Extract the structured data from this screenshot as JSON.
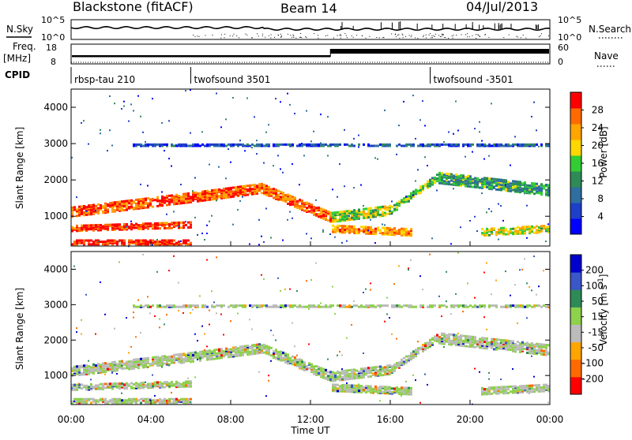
{
  "header": {
    "station": "Blackstone (fitACF)",
    "beam": "Beam 14",
    "date": "04/Jul/2013"
  },
  "top_panels": {
    "nsky_label": "N.Sky",
    "nsearch_label": "N.Search",
    "nsky_ticks": [
      "10^5",
      "10^0"
    ],
    "nsearch_ticks": [
      "10^5",
      "10^0"
    ],
    "freq_label": "Freq.",
    "freq_unit": "[MHz]",
    "freq_ticks": [
      "18",
      "8"
    ],
    "nave_label": "Nave",
    "nave_ticks": [
      "60",
      "0"
    ],
    "cpid_label": "CPID",
    "cpid_segments": [
      {
        "label": "rbsp-tau 210",
        "start_hour": 0
      },
      {
        "label": "twofsound 3501",
        "start_hour": 6
      },
      {
        "label": "twofsound -3501",
        "start_hour": 18
      }
    ]
  },
  "chart_data": [
    {
      "type": "heatmap",
      "name": "power",
      "ylabel": "Slant Range [km]",
      "xlim_hours": [
        0,
        24
      ],
      "ylim": [
        180,
        4500
      ],
      "yticks": [
        "1000",
        "2000",
        "3000",
        "4000"
      ],
      "colorbar": {
        "label": "Power [dB]",
        "ticks": [
          "28",
          "24",
          "20",
          "16",
          "12",
          "8",
          "4"
        ],
        "range": [
          0,
          30
        ],
        "colors": [
          "#0000ff",
          "#1e3fc8",
          "#2e6fa0",
          "#2e8b57",
          "#32cd32",
          "#ffd700",
          "#ffa500",
          "#ff6a00",
          "#ff0000"
        ]
      },
      "bands": [
        {
          "h0": 0.0,
          "r0": 1150,
          "h1": 6.0,
          "r1": 1550,
          "width": 250,
          "level": 0.85
        },
        {
          "h0": 0.0,
          "r0": 700,
          "h1": 6.0,
          "r1": 800,
          "width": 150,
          "level": 0.9
        },
        {
          "h0": 0.0,
          "r0": 300,
          "h1": 6.0,
          "r1": 300,
          "width": 150,
          "level": 0.95
        },
        {
          "h0": 6.0,
          "r0": 1550,
          "h1": 9.5,
          "r1": 1800,
          "width": 250,
          "level": 0.85
        },
        {
          "h0": 9.5,
          "r0": 1800,
          "h1": 13.0,
          "r1": 1000,
          "width": 250,
          "level": 0.85
        },
        {
          "h0": 13.0,
          "r0": 1000,
          "h1": 16.0,
          "r1": 1200,
          "width": 250,
          "level": 0.55
        },
        {
          "h0": 13.0,
          "r0": 700,
          "h1": 17.0,
          "r1": 600,
          "width": 200,
          "level": 0.75
        },
        {
          "h0": 16.0,
          "r0": 1200,
          "h1": 18.3,
          "r1": 2100,
          "width": 200,
          "level": 0.5
        },
        {
          "h0": 18.3,
          "r0": 2100,
          "h1": 24.0,
          "r1": 1750,
          "width": 300,
          "level": 0.4
        },
        {
          "h0": 20.5,
          "r0": 600,
          "h1": 24.0,
          "r1": 700,
          "width": 200,
          "level": 0.6
        },
        {
          "h0": 3.0,
          "r0": 3000,
          "h1": 24.0,
          "r1": 3000,
          "width": 60,
          "level": 0.2
        }
      ]
    },
    {
      "type": "heatmap",
      "name": "velocity",
      "ylabel": "Slant Range [km]",
      "xlabel": "Time UT",
      "xlim_hours": [
        0,
        24
      ],
      "ylim": [
        180,
        4500
      ],
      "yticks": [
        "1000",
        "2000",
        "3000",
        "4000"
      ],
      "xticks": [
        "00:00",
        "04:00",
        "08:00",
        "12:00",
        "16:00",
        "20:00",
        "00:00"
      ],
      "colorbar": {
        "label": "Velocity [m s-1]",
        "ticks": [
          "200",
          "100",
          "50",
          "15",
          "-15",
          "-50",
          "-100",
          "-200"
        ],
        "range": [
          -250,
          250
        ],
        "colors": [
          "#ff0000",
          "#ff6a00",
          "#ffa500",
          "#bbbbbb",
          "#8ed14b",
          "#2e8b57",
          "#3a56c8",
          "#0000cd"
        ]
      },
      "bands": [
        {
          "h0": 0.0,
          "r0": 1150,
          "h1": 6.0,
          "r1": 1550,
          "width": 250,
          "level": 0.5
        },
        {
          "h0": 0.0,
          "r0": 700,
          "h1": 6.0,
          "r1": 800,
          "width": 150,
          "level": 0.5
        },
        {
          "h0": 0.0,
          "r0": 300,
          "h1": 6.0,
          "r1": 300,
          "width": 150,
          "level": 0.5
        },
        {
          "h0": 6.0,
          "r0": 1550,
          "h1": 9.5,
          "r1": 1800,
          "width": 250,
          "level": 0.5
        },
        {
          "h0": 9.5,
          "r0": 1800,
          "h1": 13.0,
          "r1": 1000,
          "width": 250,
          "level": 0.6
        },
        {
          "h0": 13.0,
          "r0": 1000,
          "h1": 16.0,
          "r1": 1200,
          "width": 250,
          "level": 0.55
        },
        {
          "h0": 13.0,
          "r0": 700,
          "h1": 17.0,
          "r1": 600,
          "width": 200,
          "level": 0.55
        },
        {
          "h0": 16.0,
          "r0": 1200,
          "h1": 18.3,
          "r1": 2100,
          "width": 200,
          "level": 0.5
        },
        {
          "h0": 18.3,
          "r0": 2100,
          "h1": 24.0,
          "r1": 1750,
          "width": 300,
          "level": 0.5
        },
        {
          "h0": 20.5,
          "r0": 600,
          "h1": 24.0,
          "r1": 700,
          "width": 200,
          "level": 0.6
        },
        {
          "h0": 3.0,
          "r0": 3000,
          "h1": 24.0,
          "r1": 3000,
          "width": 60,
          "level": 0.5
        }
      ]
    }
  ]
}
